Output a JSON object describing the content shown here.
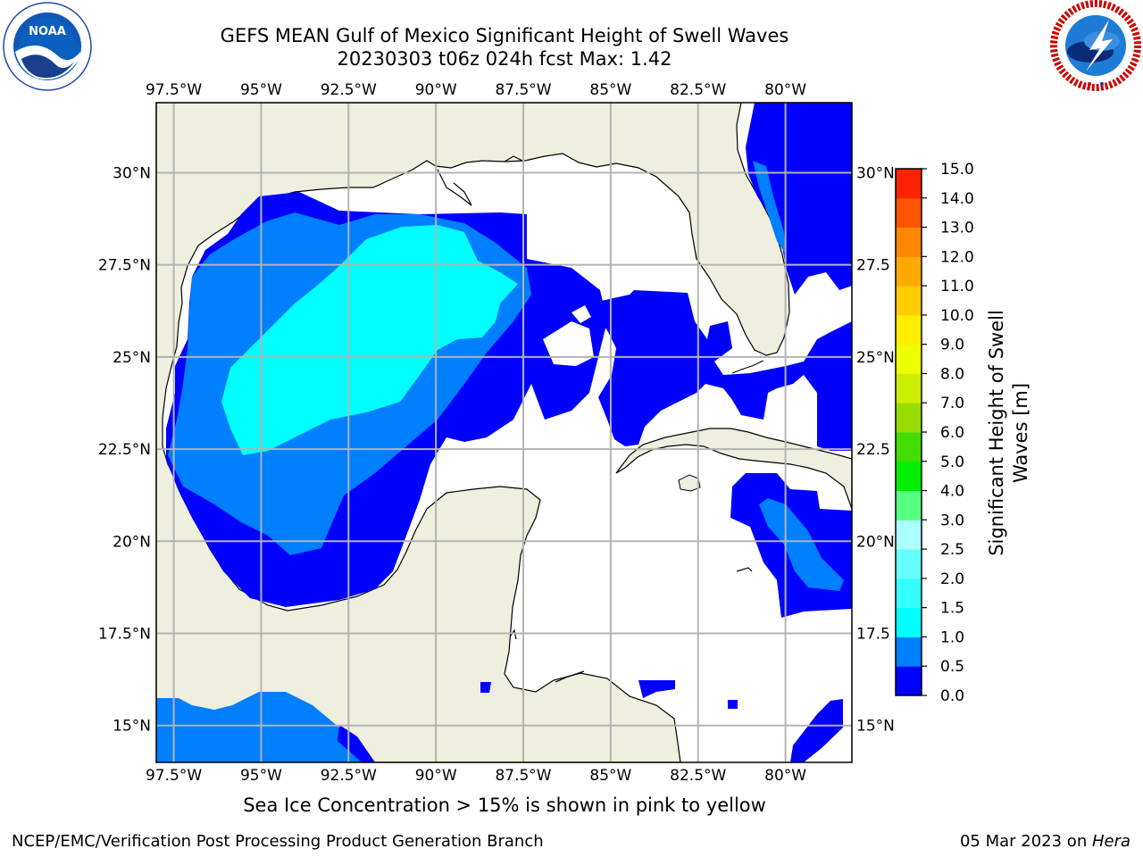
{
  "header": {
    "title_line1": "GEFS MEAN Gulf of Mexico Significant Height of Swell Waves",
    "title_line2": "20230303 t06z 024h fcst   Max: 1.42"
  },
  "logos": {
    "left": "noaa-logo",
    "right": "national-weather-service-logo"
  },
  "map": {
    "region": "Gulf of Mexico",
    "colors": {
      "land": "#efefdf",
      "coast": "#000000",
      "grid": "#b3b3b3",
      "no_data": "#ffffff"
    },
    "lon_ticks": [
      "97.5°W",
      "95°W",
      "92.5°W",
      "90°W",
      "87.5°W",
      "85°W",
      "82.5°W",
      "80°W"
    ],
    "lon_values": [
      -97.5,
      -95,
      -92.5,
      -90,
      -87.5,
      -85,
      -82.5,
      -80
    ],
    "lat_ticks_left": [
      "30°N",
      "27.5°N",
      "25°N",
      "22.5°N",
      "20°N",
      "17.5°N",
      "15°N"
    ],
    "lat_ticks_right": [
      "30°N",
      "27.5",
      "25°N",
      "22.5",
      "20°N",
      "17.5",
      "15°N"
    ],
    "lat_values": [
      30,
      27.5,
      25,
      22.5,
      20,
      17.5,
      15
    ],
    "extent": {
      "lon": [
        -98,
        -78.1
      ],
      "lat": [
        14,
        31.9
      ]
    }
  },
  "colorbar": {
    "label": "Significant Height of Swell Waves [m]",
    "label_line1": "Significant Height of Swell",
    "label_line2": "Waves [m]",
    "ticks": [
      "0.0",
      "0.5",
      "1.0",
      "1.5",
      "2.0",
      "2.5",
      "3.0",
      "4.0",
      "5.0",
      "6.0",
      "7.0",
      "8.0",
      "9.0",
      "10.0",
      "11.0",
      "12.0",
      "13.0",
      "14.0",
      "15.0"
    ],
    "colors": [
      "#0000ff",
      "#007fff",
      "#00ffff",
      "#33ffff",
      "#66ffff",
      "#aaffff",
      "#55ff80",
      "#00ee00",
      "#44dd00",
      "#99dd00",
      "#ccee00",
      "#eeff00",
      "#ffee00",
      "#ffcc00",
      "#ffaa00",
      "#ff8800",
      "#ff5500",
      "#ff2200"
    ]
  },
  "caption": "Sea Ice Concentration > 15% is shown in pink to yellow",
  "footer": {
    "left": "NCEP/EMC/Verification Post Processing Product Generation Branch",
    "date": "05 Mar 2023 on ",
    "host": "Hera"
  }
}
